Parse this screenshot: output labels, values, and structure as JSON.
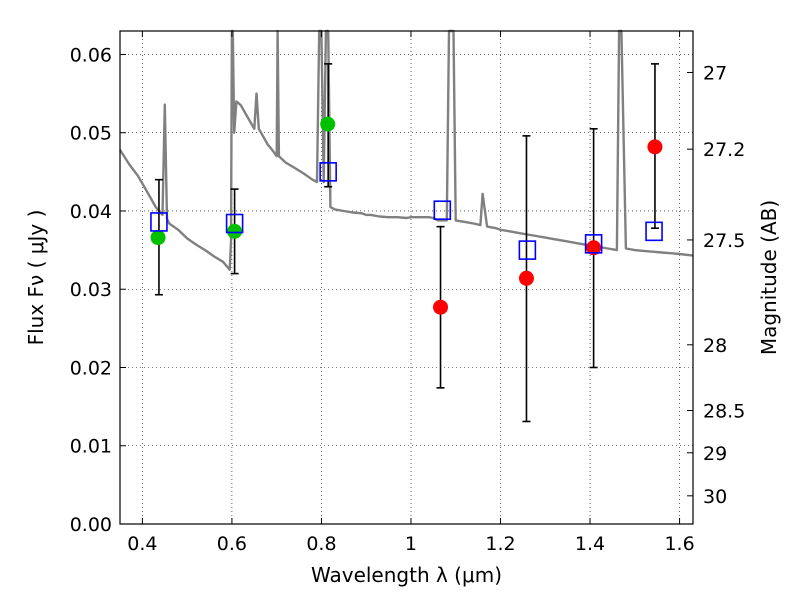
{
  "chart_data": {
    "type": "scatter",
    "xlabel": "Wavelength  λ (μm)",
    "ylabel": "Flux  Fν  ( μJy )",
    "y2label": "Magnitude (AB)",
    "xlim": [
      0.35,
      1.63
    ],
    "ylim": [
      0.0,
      0.063
    ],
    "grid": true,
    "x_ticks": [
      0.4,
      0.6,
      0.8,
      1.0,
      1.2,
      1.4,
      1.6
    ],
    "x_tick_labels": [
      "0.4",
      "0.6",
      "0.8",
      "1",
      "1.2",
      "1.4",
      "1.6"
    ],
    "y_ticks": [
      0.0,
      0.01,
      0.02,
      0.03,
      0.04,
      0.05,
      0.06
    ],
    "y_tick_labels": [
      "0.00",
      "0.01",
      "0.02",
      "0.03",
      "0.04",
      "0.05",
      "0.06"
    ],
    "y2_ticks": [
      {
        "label": "27",
        "flux": 0.0577
      },
      {
        "label": "27.2",
        "flux": 0.0479
      },
      {
        "label": "27.5",
        "flux": 0.0363
      },
      {
        "label": "28",
        "flux": 0.0229
      },
      {
        "label": "28.5",
        "flux": 0.0145
      },
      {
        "label": "29",
        "flux": 0.0091
      },
      {
        "label": "30",
        "flux": 0.0036
      }
    ],
    "series": [
      {
        "marker": "circle",
        "color": "#00c000",
        "x": [
          0.435,
          0.606,
          0.814
        ],
        "y": [
          0.0366,
          0.0374,
          0.0511
        ]
      },
      {
        "marker": "circle",
        "color": "#ff0000",
        "x": [
          1.066,
          1.258,
          1.408,
          1.545
        ],
        "y": [
          0.0277,
          0.0314,
          0.0353,
          0.0482
        ]
      },
      {
        "marker": "open-square",
        "color": "#0000ff",
        "x": [
          0.437,
          0.606,
          0.815,
          1.07,
          1.26,
          1.408,
          1.543
        ],
        "y": [
          0.0386,
          0.0384,
          0.045,
          0.0401,
          0.035,
          0.0358,
          0.0374
        ]
      },
      {
        "marker": "errorbar",
        "color": "#000000",
        "x": [
          0.437,
          0.606,
          0.815,
          1.066,
          1.258,
          1.408,
          1.545
        ],
        "ylow": [
          0.0293,
          0.032,
          0.0431,
          0.0174,
          0.0131,
          0.02,
          0.0378
        ],
        "yhigh": [
          0.044,
          0.0428,
          0.0588,
          0.038,
          0.0496,
          0.0505,
          0.0588
        ]
      },
      {
        "type": "line",
        "color": "#808080",
        "x": [
          0.35,
          0.37,
          0.39,
          0.41,
          0.43,
          0.44,
          0.445,
          0.45,
          0.455,
          0.46,
          0.48,
          0.5,
          0.52,
          0.54,
          0.56,
          0.58,
          0.595,
          0.598,
          0.6,
          0.602,
          0.605,
          0.61,
          0.62,
          0.63,
          0.64,
          0.65,
          0.655,
          0.66,
          0.67,
          0.68,
          0.69,
          0.7,
          0.702,
          0.705,
          0.72,
          0.74,
          0.76,
          0.78,
          0.79,
          0.795,
          0.8,
          0.805,
          0.81,
          0.815,
          0.82,
          0.83,
          0.85,
          0.87,
          0.89,
          0.9,
          0.91,
          0.93,
          0.95,
          0.97,
          0.99,
          1.0,
          1.02,
          1.04,
          1.05,
          1.06,
          1.08,
          1.085,
          1.09,
          1.095,
          1.1,
          1.12,
          1.14,
          1.155,
          1.16,
          1.17,
          1.19,
          1.2,
          1.22,
          1.24,
          1.26,
          1.28,
          1.3,
          1.32,
          1.34,
          1.36,
          1.38,
          1.4,
          1.42,
          1.44,
          1.46,
          1.465,
          1.47,
          1.48,
          1.5,
          1.52,
          1.54,
          1.56,
          1.58,
          1.6,
          1.63
        ],
        "y": [
          0.0478,
          0.046,
          0.0445,
          0.0425,
          0.0405,
          0.0398,
          0.0395,
          0.0536,
          0.039,
          0.0384,
          0.0376,
          0.0365,
          0.0357,
          0.035,
          0.0342,
          0.0335,
          0.0325,
          0.036,
          0.063,
          0.063,
          0.05,
          0.054,
          0.0535,
          0.0525,
          0.0515,
          0.0505,
          0.055,
          0.0505,
          0.0495,
          0.0485,
          0.0478,
          0.047,
          0.063,
          0.047,
          0.0462,
          0.0455,
          0.0448,
          0.044,
          0.0437,
          0.063,
          0.063,
          0.0437,
          0.063,
          0.063,
          0.0405,
          0.0402,
          0.04,
          0.0398,
          0.0397,
          0.0395,
          0.0395,
          0.0393,
          0.0392,
          0.0392,
          0.0391,
          0.0392,
          0.0392,
          0.0392,
          0.0391,
          0.0388,
          0.0388,
          0.063,
          0.063,
          0.063,
          0.0388,
          0.0386,
          0.0384,
          0.0382,
          0.0422,
          0.038,
          0.0378,
          0.0376,
          0.0374,
          0.0372,
          0.037,
          0.0368,
          0.0366,
          0.0364,
          0.0362,
          0.036,
          0.0358,
          0.0356,
          0.0354,
          0.0352,
          0.035,
          0.063,
          0.063,
          0.0352,
          0.035,
          0.0349,
          0.0348,
          0.0347,
          0.0346,
          0.0345,
          0.0343
        ]
      }
    ]
  }
}
